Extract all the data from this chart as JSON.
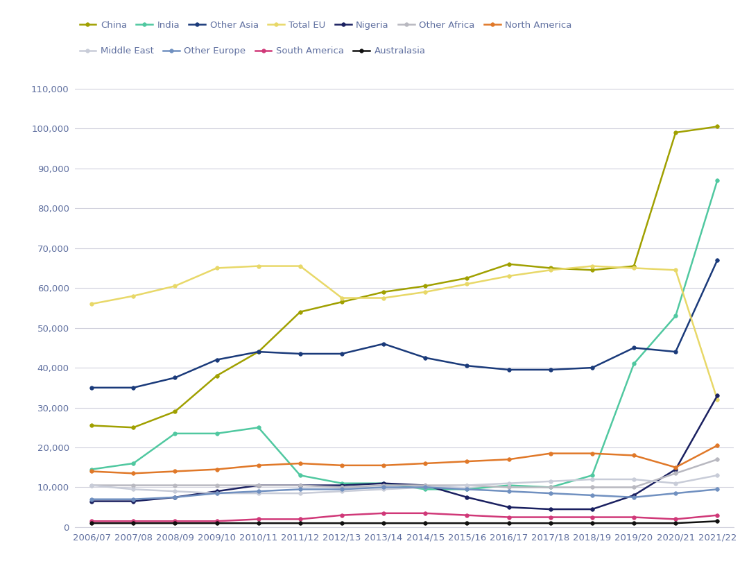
{
  "years": [
    "2006/07",
    "2007/08",
    "2008/09",
    "2009/10",
    "2010/11",
    "2011/12",
    "2012/13",
    "2013/14",
    "2014/15",
    "2015/16",
    "2016/17",
    "2017/18",
    "2018/19",
    "2019/20",
    "2020/21",
    "2021/22"
  ],
  "series": {
    "China": {
      "color": "#a0a000",
      "values": [
        25500,
        25000,
        29000,
        38000,
        44000,
        54000,
        56500,
        59000,
        60500,
        62500,
        66000,
        65000,
        64500,
        65500,
        99000,
        100500
      ]
    },
    "India": {
      "color": "#50c8a0",
      "values": [
        14500,
        16000,
        23500,
        23500,
        25000,
        13000,
        11000,
        11000,
        9500,
        9500,
        10500,
        10000,
        13000,
        41000,
        53000,
        87000
      ]
    },
    "Other Asia": {
      "color": "#1a3a7a",
      "values": [
        35000,
        35000,
        37500,
        42000,
        44000,
        43500,
        43500,
        46000,
        42500,
        40500,
        39500,
        39500,
        40000,
        45000,
        44000,
        67000
      ]
    },
    "Total EU": {
      "color": "#e8d868",
      "values": [
        56000,
        58000,
        60500,
        65000,
        65500,
        65500,
        57500,
        57500,
        59000,
        61000,
        63000,
        64500,
        65500,
        65000,
        64500,
        32000
      ]
    },
    "Nigeria": {
      "color": "#1a2060",
      "values": [
        6500,
        6500,
        7500,
        9000,
        10500,
        10500,
        10500,
        11000,
        10500,
        7500,
        5000,
        4500,
        4500,
        8000,
        14500,
        33000
      ]
    },
    "Other Africa": {
      "color": "#b8b8c0",
      "values": [
        10500,
        10500,
        10500,
        10500,
        10500,
        10500,
        10000,
        10500,
        10500,
        10500,
        10000,
        10000,
        10000,
        10000,
        13500,
        17000
      ]
    },
    "North America": {
      "color": "#e07828",
      "values": [
        14000,
        13500,
        14000,
        14500,
        15500,
        16000,
        15500,
        15500,
        16000,
        16500,
        17000,
        18500,
        18500,
        18000,
        15000,
        20500
      ]
    },
    "Middle East": {
      "color": "#c8ccd8",
      "values": [
        10500,
        9500,
        9000,
        8500,
        8500,
        8500,
        9000,
        9500,
        10000,
        10500,
        11000,
        11500,
        12000,
        12000,
        11000,
        13000
      ]
    },
    "Other Europe": {
      "color": "#7090c0",
      "values": [
        7000,
        7000,
        7500,
        8500,
        9000,
        9500,
        9500,
        10000,
        10000,
        9500,
        9000,
        8500,
        8000,
        7500,
        8500,
        9500
      ]
    },
    "South America": {
      "color": "#d03878",
      "values": [
        1500,
        1500,
        1500,
        1500,
        2000,
        2000,
        3000,
        3500,
        3500,
        3000,
        2500,
        2500,
        2500,
        2500,
        2000,
        3000
      ]
    },
    "Australasia": {
      "color": "#101010",
      "values": [
        1000,
        1000,
        1000,
        1000,
        1000,
        1000,
        1000,
        1000,
        1000,
        1000,
        1000,
        1000,
        1000,
        1000,
        1000,
        1500
      ]
    }
  },
  "ylim": [
    0,
    115000
  ],
  "yticks": [
    0,
    10000,
    20000,
    30000,
    40000,
    50000,
    60000,
    70000,
    80000,
    90000,
    100000,
    110000
  ],
  "background_color": "#ffffff",
  "grid_color": "#d0d0dc",
  "legend_order": [
    "China",
    "India",
    "Other Asia",
    "Total EU",
    "Nigeria",
    "Other Africa",
    "North America",
    "Middle East",
    "Other Europe",
    "South America",
    "Australasia"
  ],
  "legend_row1": [
    "China",
    "India",
    "Other Asia",
    "Total EU",
    "Nigeria",
    "Other Africa",
    "North America"
  ],
  "legend_row2": [
    "Middle East",
    "Other Europe",
    "South America",
    "Australasia"
  ],
  "tick_color": "#6070a0",
  "label_fontsize": 9.5,
  "legend_fontsize": 9.5
}
